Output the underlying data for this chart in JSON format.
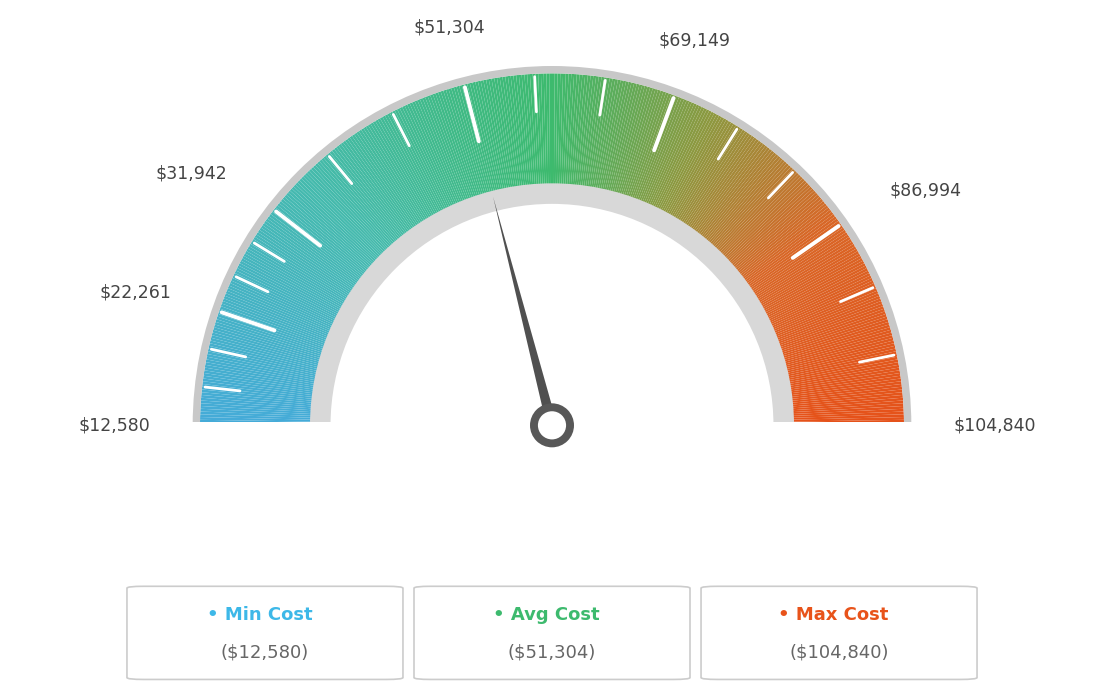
{
  "min_val": 12580,
  "max_val": 104840,
  "avg_val": 51304,
  "labels": [
    "$12,580",
    "$22,261",
    "$31,942",
    "$51,304",
    "$69,149",
    "$86,994",
    "$104,840"
  ],
  "label_values": [
    12580,
    22261,
    31942,
    51304,
    69149,
    86994,
    104840
  ],
  "min_cost_label": "Min Cost",
  "avg_cost_label": "Avg Cost",
  "max_cost_label": "Max Cost",
  "min_cost_val": "($12,580)",
  "avg_cost_val": "($51,304)",
  "max_cost_val": "($104,840)",
  "min_color": "#3db8e8",
  "avg_color": "#3dba6e",
  "max_color": "#e8531a",
  "bg_color": "#ffffff",
  "color_stops": [
    [
      0.0,
      [
        0.27,
        0.67,
        0.85
      ]
    ],
    [
      0.25,
      [
        0.27,
        0.73,
        0.68
      ]
    ],
    [
      0.5,
      [
        0.24,
        0.73,
        0.43
      ]
    ],
    [
      0.65,
      [
        0.55,
        0.6,
        0.25
      ]
    ],
    [
      0.8,
      [
        0.85,
        0.4,
        0.15
      ]
    ],
    [
      1.0,
      [
        0.9,
        0.32,
        0.1
      ]
    ]
  ]
}
